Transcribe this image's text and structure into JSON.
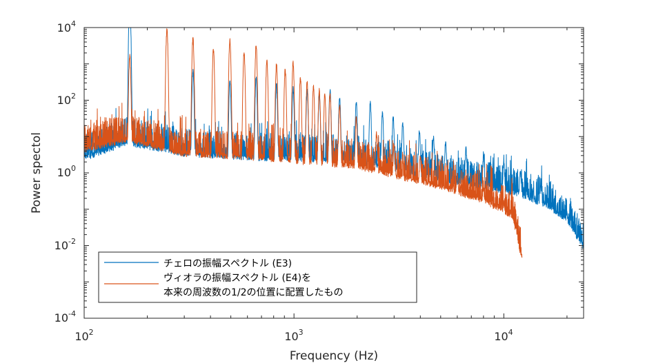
{
  "chart_data": {
    "type": "line",
    "xscale": "log",
    "yscale": "log",
    "xlabel": "Frequency (Hz)",
    "ylabel": "Power spectol",
    "xlim": [
      100,
      24000
    ],
    "ylim": [
      0.0001,
      10000
    ],
    "xticks": [
      {
        "base": "10",
        "exp": "2",
        "value": 100
      },
      {
        "base": "10",
        "exp": "3",
        "value": 1000
      },
      {
        "base": "10",
        "exp": "4",
        "value": 10000
      }
    ],
    "yticks": [
      {
        "base": "10",
        "exp": "-4",
        "value": 0.0001
      },
      {
        "base": "10",
        "exp": "-2",
        "value": 0.01
      },
      {
        "base": "10",
        "exp": "0",
        "value": 1
      },
      {
        "base": "10",
        "exp": "2",
        "value": 100
      },
      {
        "base": "10",
        "exp": "4",
        "value": 10000
      }
    ],
    "series": [
      {
        "name": "チェロの振幅スペクトル (E3)",
        "color": "#0072BD",
        "fundamental_hz": 165,
        "f_max_hz": 24000,
        "envelope": [
          [
            100,
            3
          ],
          [
            160,
            8
          ],
          [
            300,
            4
          ],
          [
            700,
            3
          ],
          [
            1000,
            3
          ],
          [
            2000,
            2.5
          ],
          [
            3000,
            1.5
          ],
          [
            5000,
            0.8
          ],
          [
            8000,
            0.5
          ],
          [
            12000,
            0.3
          ],
          [
            16000,
            0.15
          ],
          [
            20000,
            0.06
          ],
          [
            24000,
            0.01
          ]
        ],
        "peaks": [
          [
            165,
            8000
          ],
          [
            330,
            200
          ],
          [
            495,
            120
          ],
          [
            660,
            150
          ],
          [
            825,
            100
          ],
          [
            990,
            80
          ],
          [
            1155,
            70
          ],
          [
            1320,
            60
          ],
          [
            1485,
            80
          ],
          [
            1650,
            50
          ],
          [
            1980,
            40
          ],
          [
            2310,
            45
          ],
          [
            2640,
            30
          ],
          [
            2970,
            25
          ],
          [
            3300,
            20
          ],
          [
            3960,
            15
          ],
          [
            4620,
            12
          ],
          [
            5280,
            10
          ],
          [
            6600,
            8
          ],
          [
            8000,
            6
          ],
          [
            10000,
            5
          ],
          [
            12000,
            3
          ],
          [
            15000,
            2
          ],
          [
            20000,
            0.5
          ]
        ]
      },
      {
        "name": "ヴィオラの振幅スペクトル (E4)を本来の周波数の1/2の位置に配置したもの",
        "color": "#D95319",
        "fundamental_hz": 165,
        "f_max_hz": 12200,
        "envelope": [
          [
            100,
            5
          ],
          [
            160,
            10
          ],
          [
            300,
            4
          ],
          [
            700,
            3
          ],
          [
            1000,
            2.5
          ],
          [
            2000,
            1.8
          ],
          [
            3000,
            1
          ],
          [
            5000,
            0.5
          ],
          [
            8000,
            0.2
          ],
          [
            11000,
            0.08
          ],
          [
            12200,
            0.005
          ]
        ],
        "peaks": [
          [
            165,
            200
          ],
          [
            248,
            2000
          ],
          [
            330,
            1500
          ],
          [
            413,
            800
          ],
          [
            495,
            1500
          ],
          [
            578,
            700
          ],
          [
            660,
            1200
          ],
          [
            743,
            500
          ],
          [
            825,
            400
          ],
          [
            908,
            300
          ],
          [
            990,
            500
          ],
          [
            1073,
            200
          ],
          [
            1155,
            150
          ],
          [
            1238,
            120
          ],
          [
            1320,
            100
          ],
          [
            1403,
            80
          ],
          [
            1485,
            80
          ],
          [
            1650,
            40
          ],
          [
            1980,
            20
          ],
          [
            2475,
            10
          ],
          [
            3000,
            6
          ],
          [
            4000,
            4
          ],
          [
            6000,
            2
          ],
          [
            8000,
            1
          ],
          [
            10000,
            0.5
          ],
          [
            11500,
            0.2
          ]
        ]
      }
    ],
    "legend": {
      "position": "bottom-left",
      "entries": [
        {
          "label": "チェロの振幅スペクトル (E3)",
          "color": "#0072BD"
        },
        {
          "label_lines": [
            "ヴィオラの振幅スペクトル (E4)を",
            "本来の周波数の1/2の位置に配置したもの"
          ],
          "color": "#D95319"
        }
      ]
    }
  }
}
